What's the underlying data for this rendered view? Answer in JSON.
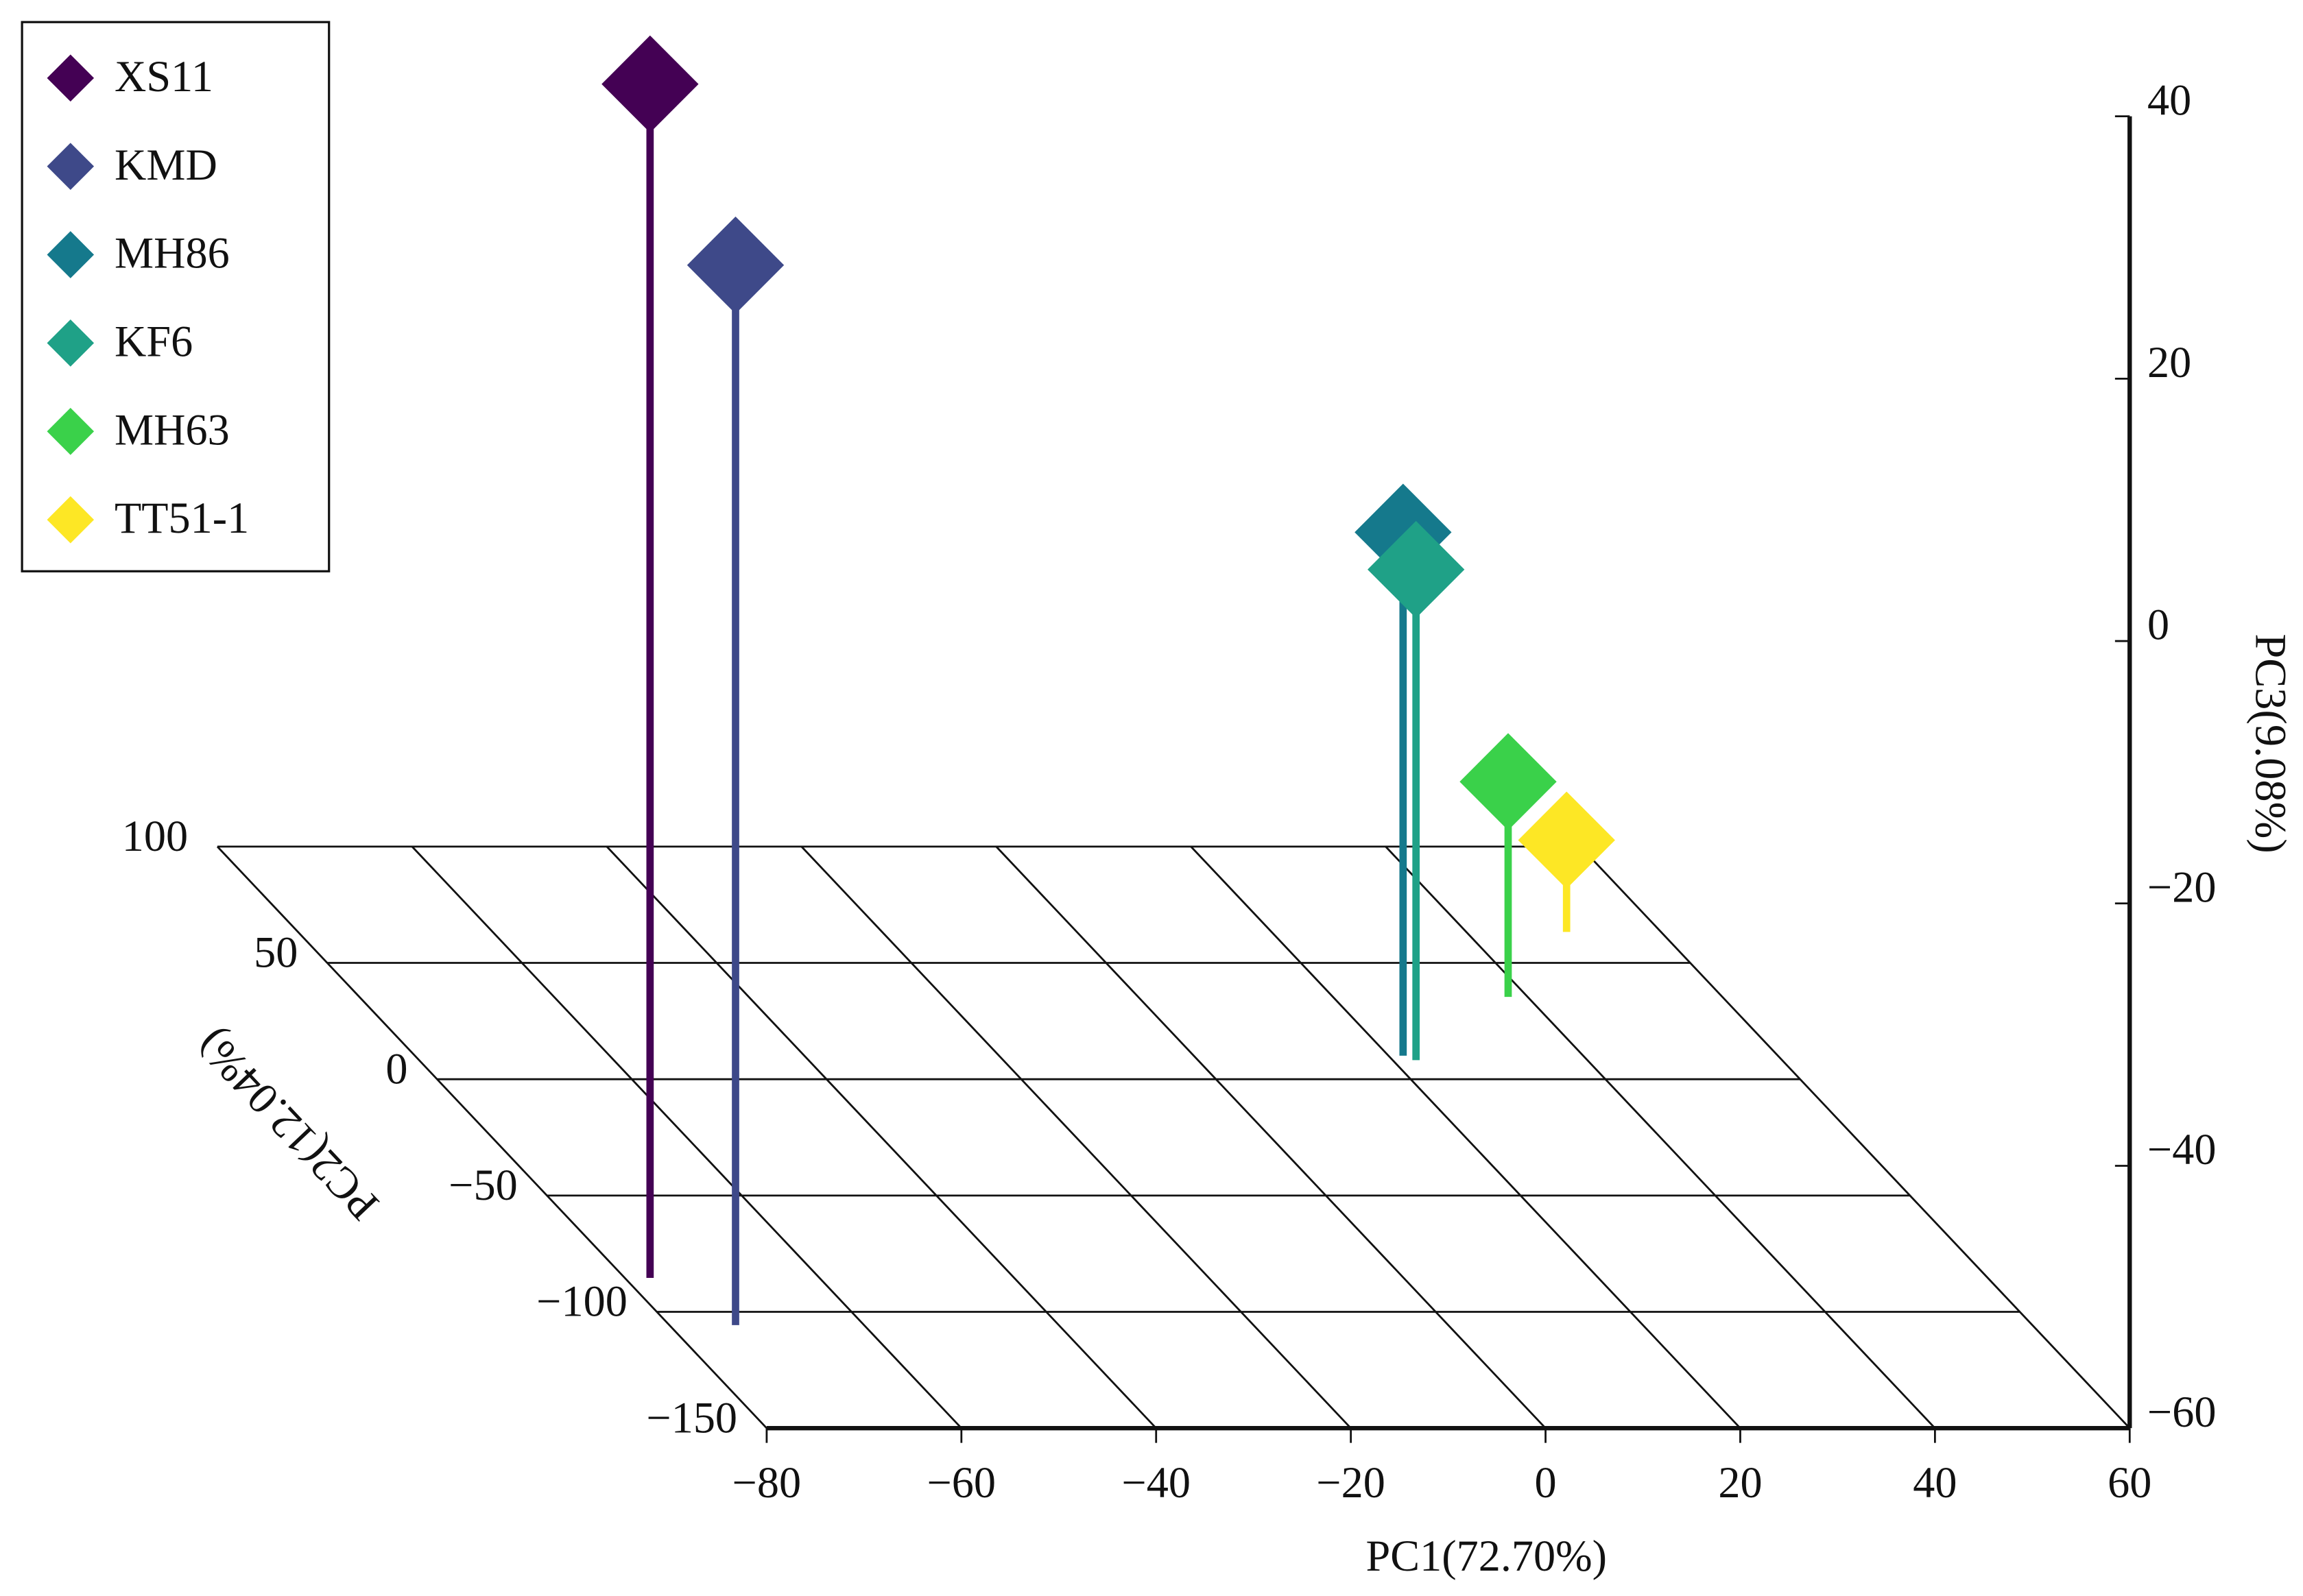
{
  "chart_data": {
    "type": "scatter3d",
    "x_label": "PC1(72.70%)",
    "y_label": "PC2(12.04%)",
    "z_label": "PC3(9.08%)",
    "xlim": [
      -80,
      60
    ],
    "xticks": [
      {
        "value": -80,
        "label": "−80"
      },
      {
        "value": -60,
        "label": "−60"
      },
      {
        "value": -40,
        "label": "−40"
      },
      {
        "value": -20,
        "label": "−20"
      },
      0,
      20,
      40,
      60
    ],
    "ylim": [
      -150,
      100
    ],
    "yticks": [
      {
        "value": -150,
        "label": "−150"
      },
      {
        "value": -100,
        "label": "−100"
      },
      {
        "value": -50,
        "label": "−50"
      },
      0,
      50,
      100
    ],
    "zlim": [
      -60,
      40
    ],
    "zticks": [
      {
        "value": -60,
        "label": "−60"
      },
      {
        "value": -40,
        "label": "−40"
      },
      {
        "value": -20,
        "label": "−20"
      },
      0,
      20,
      40
    ],
    "legend": "upper left",
    "series": [
      {
        "name": "XS11",
        "color": "#440154",
        "x": [
          -77.4
        ],
        "y": [
          -85.4
        ],
        "z": [
          31
        ]
      },
      {
        "name": "KMD",
        "color": "#3e4989",
        "x": [
          -73.2
        ],
        "y": [
          -105.7
        ],
        "z": [
          20.8
        ]
      },
      {
        "name": "MH86",
        "color": "#15798c",
        "x": [
          21.5
        ],
        "y": [
          10.1
        ],
        "z": [
          -20.1
        ]
      },
      {
        "name": "KF6",
        "color": "#1fa187",
        "x": [
          22.4
        ],
        "y": [
          8.2
        ],
        "z": [
          -22.6
        ]
      },
      {
        "name": "MH63",
        "color": "#3ad14a",
        "x": [
          38
        ],
        "y": [
          35.4
        ],
        "z": [
          -43.6
        ]
      },
      {
        "name": "TT51-1",
        "color": "#fde725",
        "x": [
          50.3
        ],
        "y": [
          63.3
        ],
        "z": [
          -53
        ]
      }
    ]
  }
}
